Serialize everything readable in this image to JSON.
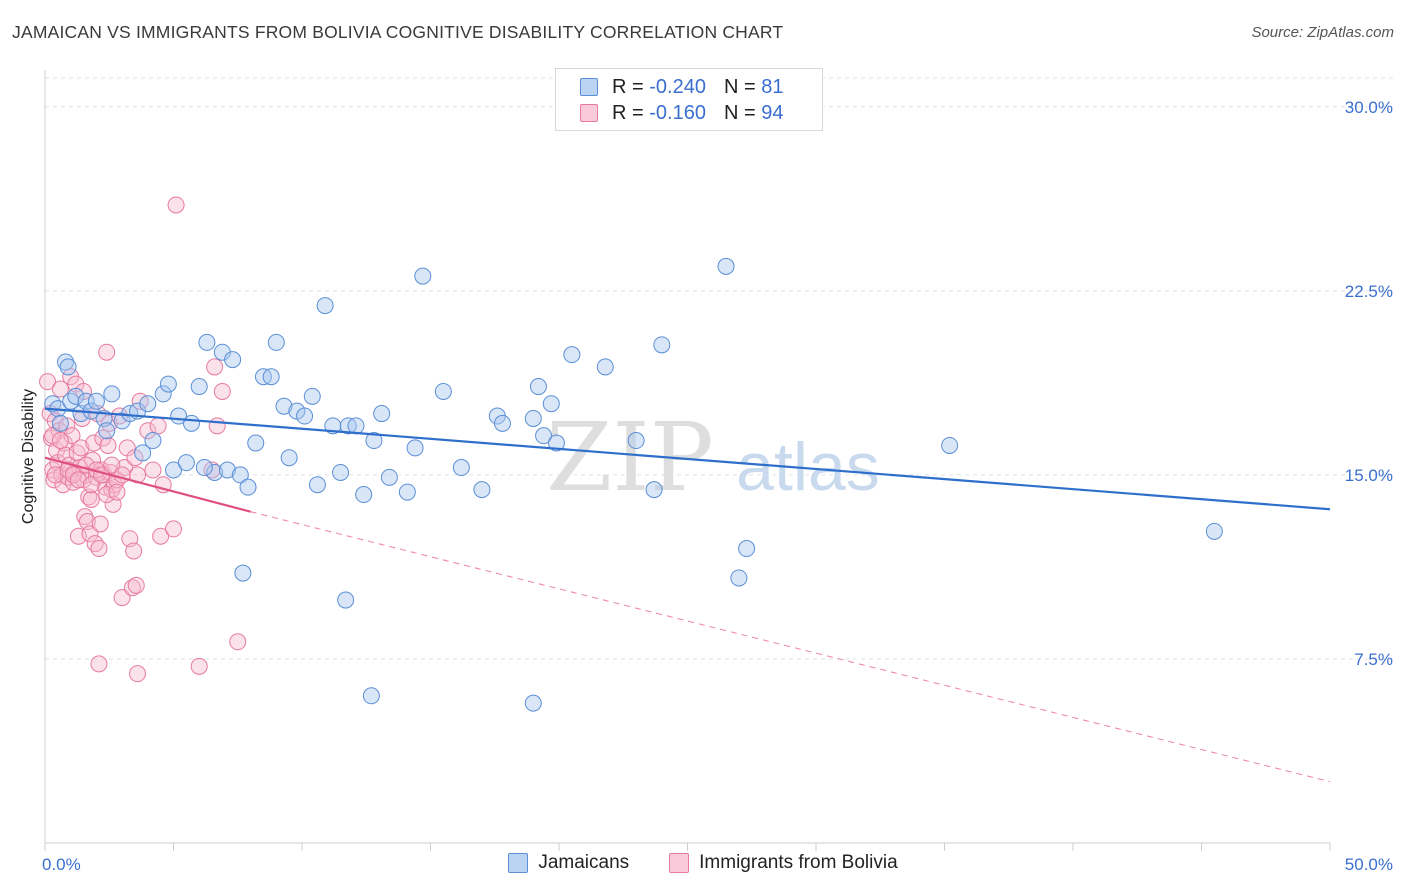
{
  "title": "JAMAICAN VS IMMIGRANTS FROM BOLIVIA COGNITIVE DISABILITY CORRELATION CHART",
  "source": "Source: ZipAtlas.com",
  "watermark": {
    "zip": "ZIP",
    "atlas": "atlas"
  },
  "legend": {
    "jamaicans": {
      "r_label": "R =",
      "r_value": "-0.240",
      "n_label": "N =",
      "n_value": "81"
    },
    "bolivia": {
      "r_label": "R =",
      "r_value": "-0.160",
      "n_label": "N =",
      "n_value": "94"
    }
  },
  "colors": {
    "blue_fill": "#a9c8f0",
    "blue_stroke": "#5b8fd6",
    "blue_line": "#2f6fcc",
    "pink_fill": "#f7bdd0",
    "pink_stroke": "#e77aa0",
    "pink_line": "#e0507e",
    "tick_label": "#3a6fd0"
  },
  "chart_data": {
    "type": "scatter",
    "title": "JAMAICAN VS IMMIGRANTS FROM BOLIVIA COGNITIVE DISABILITY CORRELATION CHART",
    "xlabel": "",
    "ylabel": "Cognitive Disability",
    "xlim": [
      0,
      50
    ],
    "ylim": [
      0,
      31.5
    ],
    "x_tick_labels": [
      "0.0%",
      "50.0%"
    ],
    "y_ticks": [
      7.5,
      15.0,
      22.5,
      30.0
    ],
    "y_tick_labels": [
      "7.5%",
      "15.0%",
      "22.5%",
      "30.0%"
    ],
    "grid": true,
    "legend_position": "bottom",
    "series": [
      {
        "name": "Jamaicans",
        "trend": {
          "x": [
            0,
            50
          ],
          "y": [
            17.7,
            13.6
          ]
        },
        "points": [
          [
            0.3,
            17.9
          ],
          [
            0.5,
            17.7
          ],
          [
            0.8,
            19.6
          ],
          [
            0.9,
            19.4
          ],
          [
            1.0,
            18.0
          ],
          [
            1.2,
            18.2
          ],
          [
            1.4,
            17.5
          ],
          [
            1.6,
            18.0
          ],
          [
            1.8,
            17.6
          ],
          [
            2.0,
            18.0
          ],
          [
            2.3,
            17.3
          ],
          [
            2.6,
            18.3
          ],
          [
            3.0,
            17.2
          ],
          [
            3.3,
            17.5
          ],
          [
            3.6,
            17.6
          ],
          [
            4.0,
            17.9
          ],
          [
            4.2,
            16.4
          ],
          [
            4.6,
            18.3
          ],
          [
            4.8,
            18.7
          ],
          [
            5.0,
            15.2
          ],
          [
            5.2,
            17.4
          ],
          [
            5.5,
            15.5
          ],
          [
            5.7,
            17.1
          ],
          [
            6.0,
            18.6
          ],
          [
            6.3,
            20.4
          ],
          [
            6.6,
            15.1
          ],
          [
            6.9,
            20.0
          ],
          [
            7.1,
            15.2
          ],
          [
            7.3,
            19.7
          ],
          [
            7.6,
            15.0
          ],
          [
            7.9,
            14.5
          ],
          [
            8.2,
            16.3
          ],
          [
            8.5,
            19.0
          ],
          [
            8.8,
            19.0
          ],
          [
            9.0,
            20.4
          ],
          [
            9.3,
            17.8
          ],
          [
            9.5,
            15.7
          ],
          [
            9.8,
            17.6
          ],
          [
            10.1,
            17.4
          ],
          [
            10.4,
            18.2
          ],
          [
            10.6,
            14.6
          ],
          [
            10.9,
            21.9
          ],
          [
            11.2,
            17.0
          ],
          [
            11.5,
            15.1
          ],
          [
            11.8,
            17.0
          ],
          [
            12.1,
            17.0
          ],
          [
            12.4,
            14.2
          ],
          [
            12.8,
            16.4
          ],
          [
            13.1,
            17.5
          ],
          [
            13.4,
            14.9
          ],
          [
            14.1,
            14.3
          ],
          [
            14.4,
            16.1
          ],
          [
            14.7,
            23.1
          ],
          [
            15.5,
            18.4
          ],
          [
            16.2,
            15.3
          ],
          [
            17.0,
            14.4
          ],
          [
            17.6,
            17.4
          ],
          [
            17.8,
            17.1
          ],
          [
            19.0,
            17.3
          ],
          [
            19.2,
            18.6
          ],
          [
            19.4,
            16.6
          ],
          [
            19.7,
            17.9
          ],
          [
            19.9,
            16.3
          ],
          [
            20.5,
            19.9
          ],
          [
            21.8,
            19.4
          ],
          [
            23.0,
            16.4
          ],
          [
            23.7,
            14.4
          ],
          [
            24.0,
            20.3
          ],
          [
            26.5,
            23.5
          ],
          [
            27.0,
            10.8
          ],
          [
            27.3,
            12.0
          ],
          [
            35.2,
            16.2
          ],
          [
            45.5,
            12.7
          ],
          [
            7.7,
            11.0
          ],
          [
            11.7,
            9.9
          ],
          [
            12.7,
            6.0
          ],
          [
            19.0,
            5.7
          ],
          [
            6.2,
            15.3
          ],
          [
            3.8,
            15.9
          ],
          [
            2.4,
            16.8
          ],
          [
            0.6,
            17.1
          ]
        ]
      },
      {
        "name": "Immigrants from Bolivia",
        "trend_solid": {
          "x": [
            0,
            8
          ],
          "y": [
            15.7,
            13.5
          ]
        },
        "trend_dashed": {
          "x": [
            8,
            50
          ],
          "y": [
            13.5,
            2.5
          ]
        },
        "points": [
          [
            0.1,
            18.8
          ],
          [
            0.2,
            17.5
          ],
          [
            0.25,
            16.5
          ],
          [
            0.3,
            15.2
          ],
          [
            0.35,
            14.8
          ],
          [
            0.4,
            17.2
          ],
          [
            0.45,
            16.0
          ],
          [
            0.5,
            15.5
          ],
          [
            0.55,
            16.8
          ],
          [
            0.6,
            18.5
          ],
          [
            0.65,
            15.0
          ],
          [
            0.7,
            14.6
          ],
          [
            0.75,
            16.3
          ],
          [
            0.8,
            15.8
          ],
          [
            0.85,
            17.0
          ],
          [
            0.9,
            14.9
          ],
          [
            0.95,
            15.4
          ],
          [
            1.0,
            19.0
          ],
          [
            1.05,
            16.6
          ],
          [
            1.1,
            14.7
          ],
          [
            1.15,
            15.1
          ],
          [
            1.2,
            18.7
          ],
          [
            1.25,
            15.9
          ],
          [
            1.3,
            12.5
          ],
          [
            1.35,
            15.3
          ],
          [
            1.4,
            16.1
          ],
          [
            1.45,
            17.3
          ],
          [
            1.5,
            14.8
          ],
          [
            1.55,
            13.3
          ],
          [
            1.6,
            15.0
          ],
          [
            1.65,
            13.1
          ],
          [
            1.7,
            14.1
          ],
          [
            1.75,
            12.6
          ],
          [
            1.8,
            14.0
          ],
          [
            1.85,
            15.6
          ],
          [
            1.9,
            16.3
          ],
          [
            1.95,
            12.2
          ],
          [
            2.0,
            14.9
          ],
          [
            2.05,
            17.5
          ],
          [
            2.1,
            12.0
          ],
          [
            2.15,
            13.0
          ],
          [
            2.2,
            15.2
          ],
          [
            2.25,
            16.5
          ],
          [
            2.3,
            15.0
          ],
          [
            2.35,
            14.5
          ],
          [
            2.4,
            20.0
          ],
          [
            2.45,
            16.2
          ],
          [
            2.5,
            17.1
          ],
          [
            2.55,
            15.1
          ],
          [
            2.6,
            14.4
          ],
          [
            2.65,
            13.8
          ],
          [
            2.7,
            14.6
          ],
          [
            2.8,
            14.8
          ],
          [
            2.9,
            17.4
          ],
          [
            3.0,
            10.0
          ],
          [
            3.1,
            15.3
          ],
          [
            3.2,
            16.1
          ],
          [
            3.3,
            12.4
          ],
          [
            3.4,
            10.4
          ],
          [
            3.45,
            11.9
          ],
          [
            3.5,
            15.7
          ],
          [
            3.55,
            10.5
          ],
          [
            3.6,
            15.0
          ],
          [
            3.7,
            18.0
          ],
          [
            4.0,
            16.8
          ],
          [
            4.2,
            15.2
          ],
          [
            4.4,
            17.0
          ],
          [
            4.5,
            12.5
          ],
          [
            4.6,
            14.6
          ],
          [
            5.0,
            12.8
          ],
          [
            5.1,
            26.0
          ],
          [
            6.0,
            7.2
          ],
          [
            6.5,
            15.2
          ],
          [
            6.6,
            19.4
          ],
          [
            6.7,
            17.0
          ],
          [
            6.9,
            18.4
          ],
          [
            7.5,
            8.2
          ],
          [
            2.1,
            7.3
          ],
          [
            3.6,
            6.9
          ],
          [
            1.5,
            18.4
          ],
          [
            0.3,
            16.6
          ],
          [
            0.4,
            15.0
          ],
          [
            0.6,
            16.4
          ],
          [
            0.9,
            15.2
          ],
          [
            1.1,
            15.0
          ],
          [
            1.3,
            14.8
          ],
          [
            1.6,
            15.4
          ],
          [
            1.8,
            14.6
          ],
          [
            2.0,
            15.2
          ],
          [
            2.2,
            15.0
          ],
          [
            2.4,
            14.2
          ],
          [
            2.6,
            15.4
          ],
          [
            2.8,
            14.3
          ],
          [
            3.0,
            15.0
          ]
        ]
      }
    ]
  }
}
